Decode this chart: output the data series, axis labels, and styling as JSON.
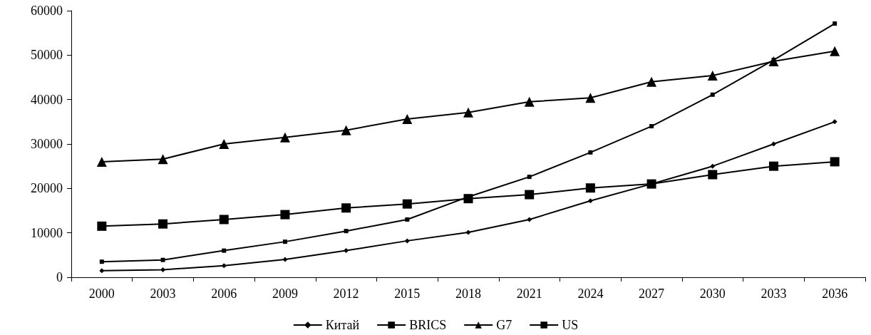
{
  "chart_data": {
    "type": "line",
    "categories": [
      "2000",
      "2003",
      "2006",
      "2009",
      "2012",
      "2015",
      "2018",
      "2021",
      "2024",
      "2027",
      "2030",
      "2033",
      "2036"
    ],
    "series": [
      {
        "name": "Китай",
        "color": "#000000",
        "marker": "diamond",
        "values": [
          1500,
          1700,
          2600,
          4000,
          6000,
          8200,
          10100,
          13000,
          17200,
          21000,
          25000,
          30000,
          35000
        ]
      },
      {
        "name": "BRICS",
        "color": "#000000",
        "marker": "square",
        "values": [
          3500,
          3900,
          6000,
          8000,
          10400,
          13000,
          18100,
          22600,
          28100,
          34000,
          41100,
          48900,
          57100
        ]
      },
      {
        "name": "G7",
        "color": "#000000",
        "marker": "triangle",
        "values": [
          26000,
          26600,
          30000,
          31500,
          33100,
          35600,
          37100,
          39500,
          40400,
          44000,
          45400,
          48600,
          50900
        ]
      },
      {
        "name": "US",
        "color": "#000000",
        "marker": "square",
        "values": [
          11500,
          12000,
          13000,
          14100,
          15600,
          16500,
          17700,
          18600,
          20100,
          21000,
          23100,
          25000,
          26000
        ]
      }
    ],
    "ylim": [
      0,
      60000
    ],
    "yticks": [
      0,
      10000,
      20000,
      30000,
      40000,
      50000,
      60000
    ],
    "grid": false,
    "legend": "bottom",
    "line_style": "solid"
  }
}
